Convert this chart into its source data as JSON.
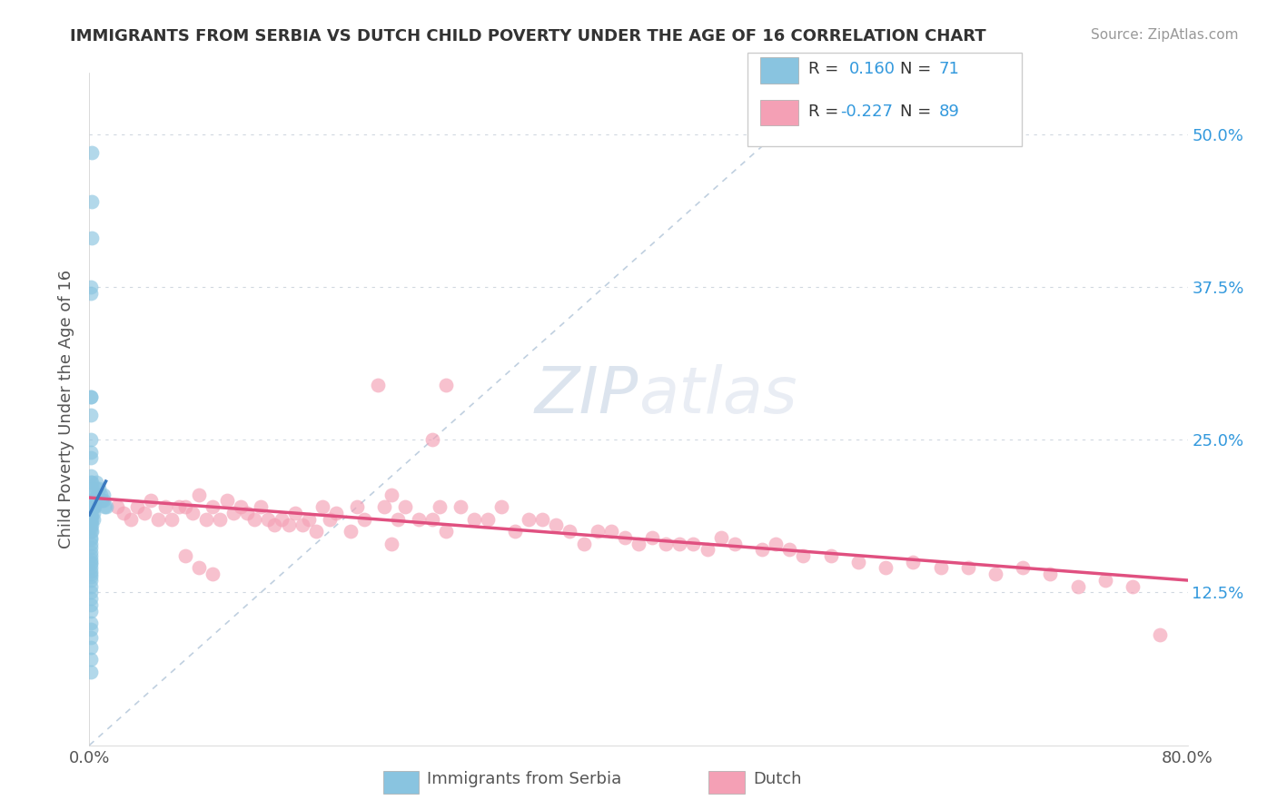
{
  "title": "IMMIGRANTS FROM SERBIA VS DUTCH CHILD POVERTY UNDER THE AGE OF 16 CORRELATION CHART",
  "source": "Source: ZipAtlas.com",
  "ylabel": "Child Poverty Under the Age of 16",
  "xlim": [
    0.0,
    0.8
  ],
  "ylim": [
    0.0,
    0.55
  ],
  "color_blue": "#89c4e0",
  "color_pink": "#f4a0b5",
  "color_blue_line": "#3a7abf",
  "color_pink_line": "#e05080",
  "color_diag": "#b0c4d8",
  "color_grid": "#d0d8e0",
  "serbia_x": [
    0.002,
    0.0015,
    0.0015,
    0.001,
    0.001,
    0.001,
    0.001,
    0.001,
    0.001,
    0.001,
    0.001,
    0.001,
    0.001,
    0.001,
    0.001,
    0.001,
    0.001,
    0.001,
    0.001,
    0.001,
    0.001,
    0.001,
    0.001,
    0.001,
    0.001,
    0.001,
    0.002,
    0.002,
    0.002,
    0.002,
    0.002,
    0.002,
    0.002,
    0.002,
    0.003,
    0.003,
    0.003,
    0.003,
    0.004,
    0.004,
    0.005,
    0.005,
    0.006,
    0.007,
    0.008,
    0.009,
    0.01,
    0.01,
    0.011,
    0.012,
    0.001,
    0.001,
    0.001,
    0.001,
    0.001,
    0.001,
    0.001,
    0.001,
    0.001,
    0.001,
    0.001,
    0.001,
    0.001,
    0.001,
    0.001,
    0.001,
    0.001,
    0.001,
    0.001,
    0.001,
    0.001
  ],
  "serbia_y": [
    0.485,
    0.445,
    0.415,
    0.375,
    0.37,
    0.285,
    0.285,
    0.27,
    0.25,
    0.24,
    0.235,
    0.22,
    0.215,
    0.205,
    0.2,
    0.195,
    0.192,
    0.188,
    0.185,
    0.182,
    0.178,
    0.175,
    0.17,
    0.168,
    0.165,
    0.162,
    0.215,
    0.21,
    0.2,
    0.195,
    0.19,
    0.185,
    0.18,
    0.175,
    0.2,
    0.195,
    0.19,
    0.185,
    0.2,
    0.195,
    0.215,
    0.21,
    0.205,
    0.21,
    0.205,
    0.2,
    0.205,
    0.2,
    0.195,
    0.195,
    0.158,
    0.155,
    0.152,
    0.15,
    0.148,
    0.145,
    0.142,
    0.14,
    0.138,
    0.135,
    0.13,
    0.125,
    0.12,
    0.115,
    0.11,
    0.1,
    0.095,
    0.088,
    0.08,
    0.07,
    0.06
  ],
  "dutch_x": [
    0.02,
    0.025,
    0.03,
    0.035,
    0.04,
    0.045,
    0.05,
    0.055,
    0.06,
    0.065,
    0.07,
    0.075,
    0.08,
    0.085,
    0.09,
    0.095,
    0.1,
    0.105,
    0.11,
    0.115,
    0.12,
    0.125,
    0.13,
    0.135,
    0.14,
    0.145,
    0.15,
    0.155,
    0.16,
    0.165,
    0.17,
    0.175,
    0.18,
    0.19,
    0.195,
    0.2,
    0.21,
    0.215,
    0.22,
    0.225,
    0.23,
    0.24,
    0.25,
    0.255,
    0.26,
    0.27,
    0.28,
    0.29,
    0.3,
    0.31,
    0.32,
    0.33,
    0.34,
    0.35,
    0.36,
    0.37,
    0.38,
    0.39,
    0.4,
    0.41,
    0.42,
    0.43,
    0.44,
    0.45,
    0.46,
    0.47,
    0.49,
    0.5,
    0.51,
    0.52,
    0.54,
    0.56,
    0.58,
    0.6,
    0.62,
    0.64,
    0.66,
    0.68,
    0.7,
    0.72,
    0.74,
    0.76,
    0.78,
    0.07,
    0.08,
    0.09,
    0.22,
    0.25,
    0.26
  ],
  "dutch_y": [
    0.195,
    0.19,
    0.185,
    0.195,
    0.19,
    0.2,
    0.185,
    0.195,
    0.185,
    0.195,
    0.195,
    0.19,
    0.205,
    0.185,
    0.195,
    0.185,
    0.2,
    0.19,
    0.195,
    0.19,
    0.185,
    0.195,
    0.185,
    0.18,
    0.185,
    0.18,
    0.19,
    0.18,
    0.185,
    0.175,
    0.195,
    0.185,
    0.19,
    0.175,
    0.195,
    0.185,
    0.295,
    0.195,
    0.205,
    0.185,
    0.195,
    0.185,
    0.185,
    0.195,
    0.175,
    0.195,
    0.185,
    0.185,
    0.195,
    0.175,
    0.185,
    0.185,
    0.18,
    0.175,
    0.165,
    0.175,
    0.175,
    0.17,
    0.165,
    0.17,
    0.165,
    0.165,
    0.165,
    0.16,
    0.17,
    0.165,
    0.16,
    0.165,
    0.16,
    0.155,
    0.155,
    0.15,
    0.145,
    0.15,
    0.145,
    0.145,
    0.14,
    0.145,
    0.14,
    0.13,
    0.135,
    0.13,
    0.09,
    0.155,
    0.145,
    0.14,
    0.165,
    0.25,
    0.295
  ]
}
